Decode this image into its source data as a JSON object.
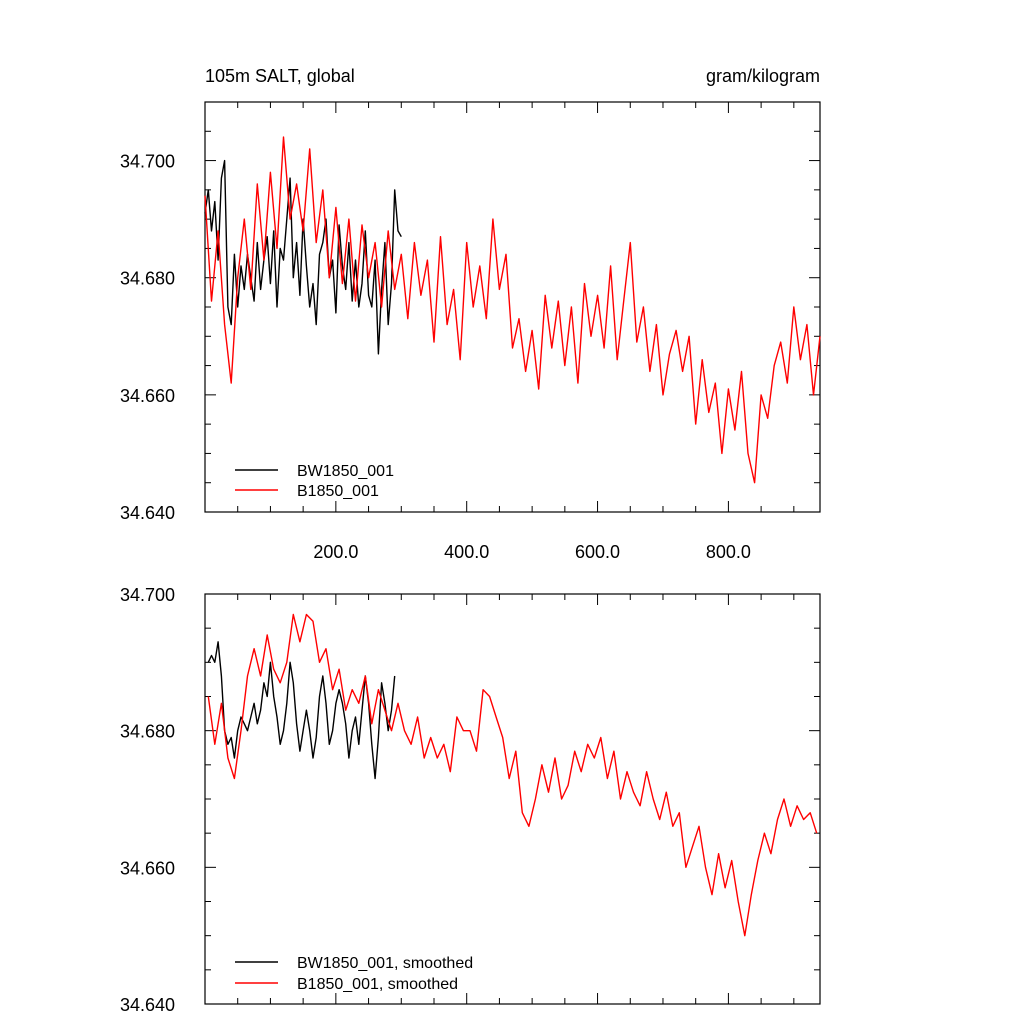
{
  "chart_data": [
    {
      "type": "line",
      "title_left": "105m SALT, global",
      "title_right": "gram/kilogram",
      "xlim": [
        0,
        940
      ],
      "ylim": [
        34.64,
        34.71
      ],
      "xticks": [
        200,
        400,
        600,
        800
      ],
      "xtick_labels": [
        "200.0",
        "400.0",
        "600.0",
        "800.0"
      ],
      "yticks": [
        34.64,
        34.66,
        34.68,
        34.7
      ],
      "ytick_labels": [
        "34.640",
        "34.660",
        "34.680",
        "34.700"
      ],
      "legend_position": "bottom-left",
      "series": [
        {
          "name": "BW1850_001",
          "color": "#000000",
          "x": [
            0,
            5,
            10,
            15,
            20,
            25,
            30,
            35,
            40,
            45,
            50,
            55,
            60,
            65,
            70,
            75,
            80,
            85,
            90,
            95,
            100,
            105,
            110,
            115,
            120,
            125,
            130,
            135,
            140,
            145,
            150,
            155,
            160,
            165,
            170,
            175,
            180,
            185,
            190,
            195,
            200,
            205,
            210,
            215,
            220,
            225,
            230,
            235,
            240,
            245,
            250,
            255,
            260,
            265,
            270,
            275,
            280,
            285,
            290,
            295,
            300
          ],
          "values": [
            34.691,
            34.695,
            34.688,
            34.693,
            34.683,
            34.697,
            34.7,
            34.675,
            34.672,
            34.684,
            34.675,
            34.682,
            34.678,
            34.684,
            34.68,
            34.676,
            34.686,
            34.678,
            34.683,
            34.687,
            34.679,
            34.688,
            34.675,
            34.685,
            34.683,
            34.69,
            34.697,
            34.68,
            34.686,
            34.677,
            34.69,
            34.682,
            34.675,
            34.679,
            34.672,
            34.684,
            34.686,
            34.69,
            34.68,
            34.683,
            34.674,
            34.689,
            34.682,
            34.678,
            34.686,
            34.676,
            34.683,
            34.675,
            34.679,
            34.688,
            34.677,
            34.675,
            34.683,
            34.667,
            34.678,
            34.686,
            34.672,
            34.679,
            34.695,
            34.688,
            34.687
          ]
        },
        {
          "name": "B1850_001",
          "color": "#ff0000",
          "x": [
            0,
            10,
            20,
            30,
            40,
            50,
            60,
            70,
            80,
            90,
            100,
            110,
            120,
            130,
            140,
            150,
            160,
            170,
            180,
            190,
            200,
            210,
            220,
            230,
            240,
            250,
            260,
            270,
            280,
            290,
            300,
            310,
            320,
            330,
            340,
            350,
            360,
            370,
            380,
            390,
            400,
            410,
            420,
            430,
            440,
            450,
            460,
            470,
            480,
            490,
            500,
            510,
            520,
            530,
            540,
            550,
            560,
            570,
            580,
            590,
            600,
            610,
            620,
            630,
            640,
            650,
            660,
            670,
            680,
            690,
            700,
            710,
            720,
            730,
            740,
            750,
            760,
            770,
            780,
            790,
            800,
            810,
            820,
            830,
            840,
            850,
            860,
            870,
            880,
            890,
            900,
            910,
            920,
            930,
            940
          ],
          "values": [
            34.694,
            34.676,
            34.688,
            34.672,
            34.662,
            34.68,
            34.69,
            34.678,
            34.696,
            34.683,
            34.698,
            34.685,
            34.704,
            34.69,
            34.696,
            34.688,
            34.702,
            34.686,
            34.695,
            34.68,
            34.692,
            34.679,
            34.69,
            34.676,
            34.689,
            34.68,
            34.686,
            34.675,
            34.688,
            34.678,
            34.684,
            34.673,
            34.686,
            34.677,
            34.683,
            34.669,
            34.687,
            34.672,
            34.678,
            34.666,
            34.686,
            34.675,
            34.682,
            34.673,
            34.69,
            34.678,
            34.684,
            34.668,
            34.673,
            34.664,
            34.671,
            34.661,
            34.677,
            34.668,
            34.676,
            34.665,
            34.675,
            34.662,
            34.679,
            34.67,
            34.677,
            34.668,
            34.682,
            34.666,
            34.676,
            34.686,
            34.669,
            34.675,
            34.664,
            34.672,
            34.66,
            34.667,
            34.671,
            34.664,
            34.67,
            34.655,
            34.666,
            34.657,
            34.662,
            34.65,
            34.661,
            34.654,
            34.664,
            34.65,
            34.645,
            34.66,
            34.656,
            34.665,
            34.669,
            34.662,
            34.675,
            34.666,
            34.672,
            34.66,
            34.67
          ]
        }
      ]
    },
    {
      "type": "line",
      "xlim": [
        0,
        940
      ],
      "ylim": [
        34.64,
        34.7
      ],
      "xticks": [
        200,
        400,
        600,
        800
      ],
      "yticks": [
        34.64,
        34.66,
        34.68,
        34.7
      ],
      "ytick_labels": [
        "34.640",
        "34.660",
        "34.680",
        "34.700"
      ],
      "legend_position": "bottom-left",
      "series": [
        {
          "name": "BW1850_001, smoothed",
          "color": "#000000",
          "x": [
            5,
            10,
            15,
            20,
            25,
            30,
            35,
            40,
            45,
            50,
            55,
            60,
            65,
            70,
            75,
            80,
            85,
            90,
            95,
            100,
            105,
            110,
            115,
            120,
            125,
            130,
            135,
            140,
            145,
            150,
            155,
            160,
            165,
            170,
            175,
            180,
            185,
            190,
            195,
            200,
            205,
            210,
            215,
            220,
            225,
            230,
            235,
            240,
            245,
            250,
            255,
            260,
            265,
            270,
            275,
            280,
            285,
            290
          ],
          "values": [
            34.69,
            34.691,
            34.69,
            34.693,
            34.688,
            34.68,
            34.678,
            34.679,
            34.676,
            34.68,
            34.682,
            34.681,
            34.68,
            34.682,
            34.684,
            34.681,
            34.683,
            34.687,
            34.685,
            34.69,
            34.685,
            34.682,
            34.678,
            34.68,
            34.684,
            34.69,
            34.687,
            34.681,
            34.677,
            34.68,
            34.683,
            34.68,
            34.676,
            34.679,
            34.685,
            34.688,
            34.684,
            34.678,
            34.68,
            34.684,
            34.686,
            34.684,
            34.681,
            34.676,
            34.68,
            34.682,
            34.678,
            34.683,
            34.688,
            34.684,
            34.678,
            34.673,
            34.679,
            34.687,
            34.684,
            34.68,
            34.683,
            34.688
          ]
        },
        {
          "name": "B1850_001, smoothed",
          "color": "#ff0000",
          "x": [
            5,
            15,
            25,
            35,
            45,
            55,
            65,
            75,
            85,
            95,
            105,
            115,
            125,
            135,
            145,
            155,
            165,
            175,
            185,
            195,
            205,
            215,
            225,
            235,
            245,
            255,
            265,
            275,
            285,
            295,
            305,
            315,
            325,
            335,
            345,
            355,
            365,
            375,
            385,
            395,
            405,
            415,
            425,
            435,
            445,
            455,
            465,
            475,
            485,
            495,
            505,
            515,
            525,
            535,
            545,
            555,
            565,
            575,
            585,
            595,
            605,
            615,
            625,
            635,
            645,
            655,
            665,
            675,
            685,
            695,
            705,
            715,
            725,
            735,
            745,
            755,
            765,
            775,
            785,
            795,
            805,
            815,
            825,
            835,
            845,
            855,
            865,
            875,
            885,
            895,
            905,
            915,
            925,
            935
          ],
          "values": [
            34.685,
            34.678,
            34.684,
            34.676,
            34.673,
            34.68,
            34.688,
            34.692,
            34.688,
            34.694,
            34.689,
            34.687,
            34.69,
            34.697,
            34.693,
            34.697,
            34.696,
            34.69,
            34.692,
            34.686,
            34.689,
            34.683,
            34.686,
            34.684,
            34.688,
            34.681,
            34.686,
            34.683,
            34.68,
            34.684,
            34.68,
            34.678,
            34.682,
            34.676,
            34.679,
            34.676,
            34.678,
            34.674,
            34.682,
            34.68,
            34.68,
            34.677,
            34.686,
            34.685,
            34.682,
            34.679,
            34.673,
            34.677,
            34.668,
            34.666,
            34.67,
            34.675,
            34.671,
            34.676,
            34.67,
            34.672,
            34.677,
            34.674,
            34.678,
            34.676,
            34.679,
            34.673,
            34.677,
            34.67,
            34.674,
            34.671,
            34.669,
            34.674,
            34.67,
            34.667,
            34.671,
            34.666,
            34.668,
            34.66,
            34.663,
            34.666,
            34.66,
            34.656,
            34.662,
            34.657,
            34.661,
            34.655,
            34.65,
            34.656,
            34.661,
            34.665,
            34.662,
            34.667,
            34.67,
            34.666,
            34.669,
            34.667,
            34.668,
            34.665
          ]
        }
      ]
    }
  ]
}
